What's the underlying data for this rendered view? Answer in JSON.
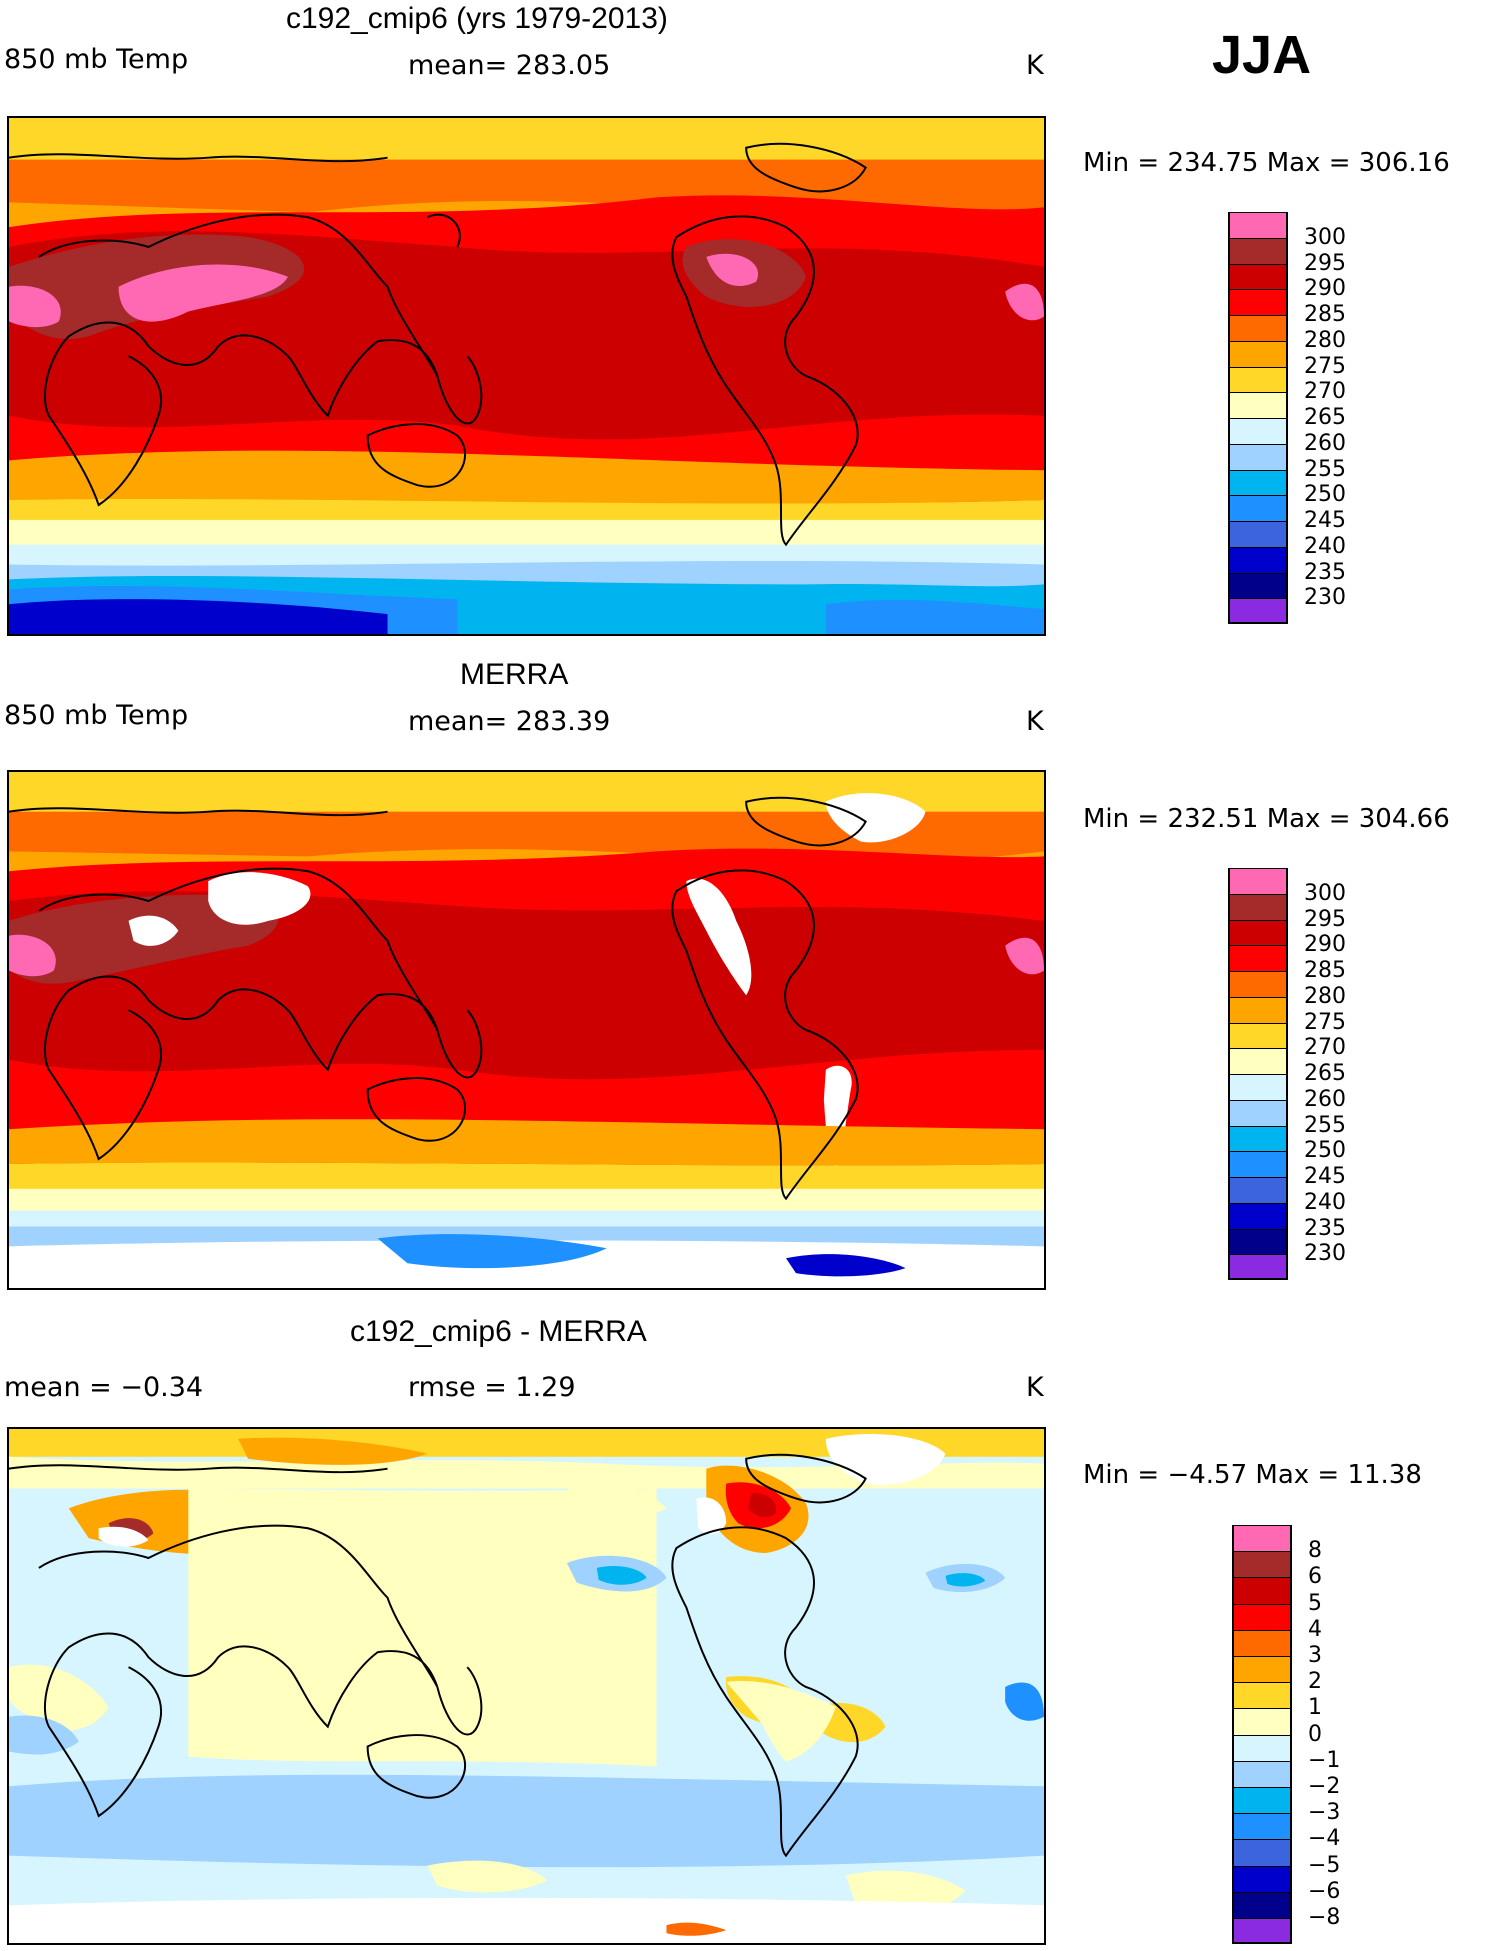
{
  "season": "JJA",
  "colors": {
    "temp_scale": [
      "#ff69b4",
      "#a52a2a",
      "#cc0000",
      "#ff0000",
      "#ff6a00",
      "#ffa500",
      "#ffd728",
      "#ffffc0",
      "#d7f5ff",
      "#a0d2ff",
      "#00b4f0",
      "#1e90ff",
      "#3c64dc",
      "#0000cd",
      "#00008b",
      "#8a2be2"
    ],
    "diff_scale": [
      "#ff69b4",
      "#a52a2a",
      "#cc0000",
      "#ff0000",
      "#ff6a00",
      "#ffa500",
      "#ffd728",
      "#ffffc0",
      "#d7f5ff",
      "#a0d2ff",
      "#00b4f0",
      "#1e90ff",
      "#3c64dc",
      "#0000cd",
      "#00008b",
      "#8a2be2"
    ]
  },
  "chart_data": [
    {
      "type": "heatmap",
      "title": "c192_cmip6 (yrs 1979-2013)",
      "variable": "850 mb Temp",
      "stat_text": "mean= 283.05",
      "mean": 283.05,
      "units": "K",
      "min_max_text": "Min = 234.75 Max = 306.16",
      "min": 234.75,
      "max": 306.16,
      "colorbar_levels": [
        "300",
        "295",
        "290",
        "285",
        "280",
        "275",
        "270",
        "265",
        "260",
        "255",
        "250",
        "245",
        "240",
        "235",
        "230"
      ]
    },
    {
      "type": "heatmap",
      "title": "MERRA",
      "variable": "850 mb Temp",
      "stat_text": "mean= 283.39",
      "mean": 283.39,
      "units": "K",
      "min_max_text": "Min = 232.51 Max = 304.66",
      "min": 232.51,
      "max": 304.66,
      "colorbar_levels": [
        "300",
        "295",
        "290",
        "285",
        "280",
        "275",
        "270",
        "265",
        "260",
        "255",
        "250",
        "245",
        "240",
        "235",
        "230"
      ]
    },
    {
      "type": "heatmap",
      "title": "c192_cmip6 - MERRA",
      "stat_left_text": "mean =  −0.34",
      "stat_text": "rmse =   1.29",
      "mean": -0.34,
      "rmse": 1.29,
      "units": "K",
      "min_max_text": "Min =  −4.57 Max =  11.38",
      "min": -4.57,
      "max": 11.38,
      "colorbar_levels": [
        "8",
        "6",
        "5",
        "4",
        "3",
        "2",
        "1",
        "0",
        "−1",
        "−2",
        "−3",
        "−4",
        "−5",
        "−6",
        "−8"
      ]
    }
  ]
}
